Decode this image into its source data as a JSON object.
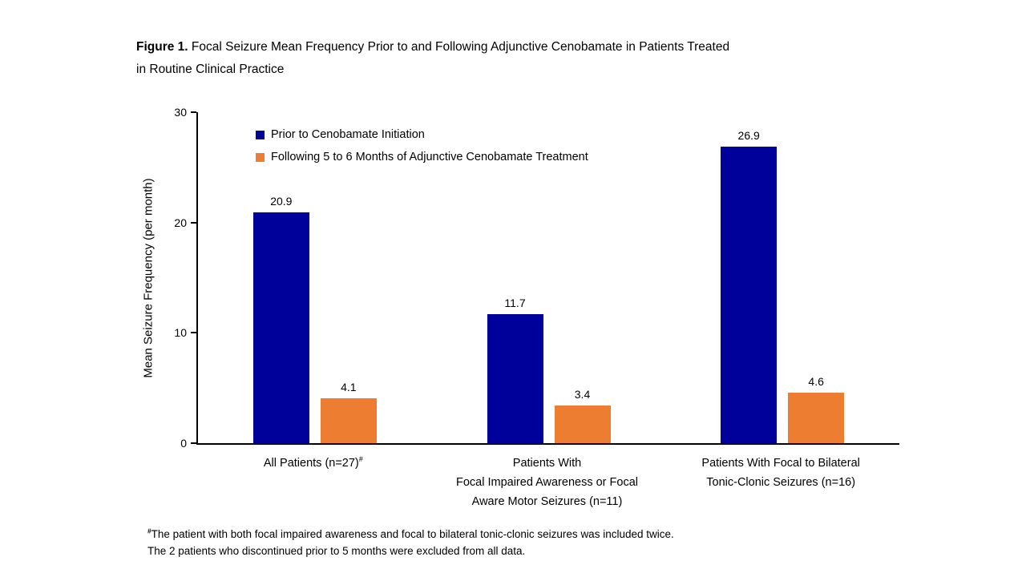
{
  "title": {
    "prefix": "Figure 1.",
    "line1_rest": "Focal Seizure Mean Frequency Prior to and Following Adjunctive Cenobamate in Patients Treated",
    "line2": "in Routine Clinical Practice"
  },
  "chart_data": {
    "type": "bar",
    "title": "Figure 1. Focal Seizure Mean Frequency Prior to and Following Adjunctive Cenobamate in Patients Treated in Routine Clinical Practice",
    "xlabel": "",
    "ylabel": "Mean Seizure Frequency (per month)",
    "ylim": [
      0,
      30
    ],
    "yticks": [
      0,
      10,
      20,
      30
    ],
    "grid": false,
    "legend_position": "top-left-inside",
    "categories": [
      {
        "label_lines": [
          "All Patients (n=27)"
        ],
        "superscript": "#"
      },
      {
        "label_lines": [
          "Patients With",
          "Focal Impaired Awareness or Focal",
          "Aware Motor Seizures (n=11)"
        ],
        "superscript": ""
      },
      {
        "label_lines": [
          "Patients With Focal to Bilateral",
          "Tonic-Clonic Seizures (n=16)"
        ],
        "superscript": ""
      }
    ],
    "series": [
      {
        "name": "Prior to Cenobamate Initiation",
        "color": "#00009B",
        "values": [
          20.9,
          11.7,
          26.9
        ]
      },
      {
        "name": "Following 5 to 6 Months of Adjunctive Cenobamate Treatment",
        "color": "#ED7D31",
        "values": [
          4.1,
          3.4,
          4.6
        ]
      }
    ],
    "data_labels": [
      "20.9",
      "11.7",
      "26.9",
      "4.1",
      "3.4",
      "4.6"
    ]
  },
  "footnote": {
    "marker": "#",
    "line1": "The patient with both focal impaired awareness and focal to bilateral tonic-clonic seizures was included twice.",
    "line2": "The 2 patients who discontinued prior to 5 months were excluded from all data."
  }
}
